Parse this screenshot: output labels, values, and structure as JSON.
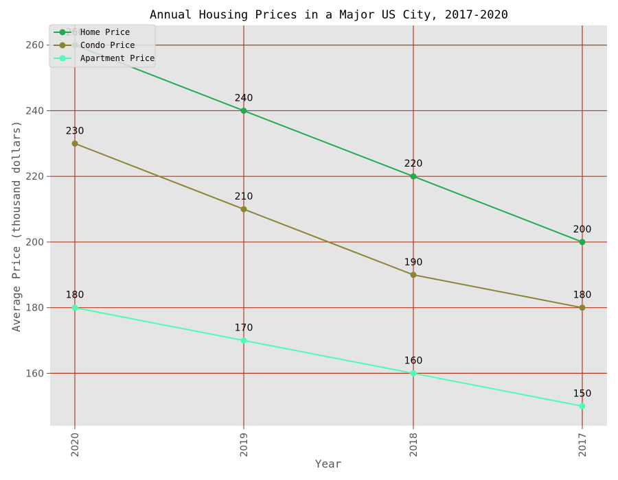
{
  "chart_data": {
    "type": "line",
    "title": "Annual Housing Prices in a Major US City, 2017-2020",
    "xlabel": "Year",
    "ylabel": "Average Price (thousand dollars)",
    "categories": [
      "2020",
      "2019",
      "2018",
      "2017"
    ],
    "ylim": [
      144,
      266
    ],
    "yticks": [
      160,
      180,
      200,
      220,
      240,
      260
    ],
    "grid": true,
    "legend_position": "top-left",
    "series": [
      {
        "name": "Home Price",
        "color": "#22aa4e",
        "values": [
          260,
          240,
          220,
          200
        ]
      },
      {
        "name": "Condo Price",
        "color": "#8b8533",
        "values": [
          230,
          210,
          190,
          180
        ]
      },
      {
        "name": "Apartment Price",
        "color": "#4ffbb9",
        "values": [
          180,
          170,
          160,
          150
        ]
      }
    ],
    "colors": {
      "background": "#e5e5e5",
      "grid": "#b33a1f"
    }
  }
}
